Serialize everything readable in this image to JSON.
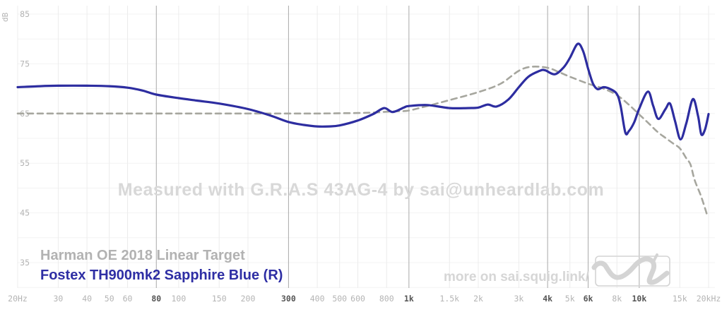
{
  "watermark": {
    "text": "Measured with G.R.A.S 43AG-4 by sai@unheardlab.com"
  },
  "branding": {
    "text": "more on sai.squig.link/",
    "logo_icon": "squiggle-logo"
  },
  "legend": {
    "target": "Harman OE 2018 Linear Target",
    "headphone": "Fostex TH900mk2 Sapphire Blue (R)",
    "target_color": "#b2b2b2",
    "headphone_color": "#2e2ea4"
  },
  "colors": {
    "curve_blue": "#2d2da0",
    "target_gray": "#a6a69e",
    "grid": "#ececec",
    "grid_bold": "#a9a9a9",
    "grid_h": "#f3f3f3",
    "tick": "#b4b4b4",
    "tick_bold": "#555555",
    "watermark": "#d8d8d8",
    "branding": "#d6d6d6",
    "logo": "#d4d4d4"
  },
  "chart_data": {
    "type": "line",
    "x_scale": "log",
    "x_unit": "Hz",
    "y_unit": "dB",
    "x_range": [
      20,
      20000
    ],
    "y_range": [
      30,
      87
    ],
    "grid": "on",
    "legend_position": "bottom-left",
    "y_ticks": [
      85,
      75,
      65,
      55,
      45,
      35
    ],
    "y_grid_step": 5,
    "x_ticks": [
      {
        "label": "20Hz",
        "f": 20,
        "bold": false
      },
      {
        "label": "30",
        "f": 30,
        "bold": false
      },
      {
        "label": "40",
        "f": 40,
        "bold": false
      },
      {
        "label": "50",
        "f": 50,
        "bold": false
      },
      {
        "label": "60",
        "f": 60,
        "bold": false
      },
      {
        "label": "80",
        "f": 80,
        "bold": true
      },
      {
        "label": "100",
        "f": 100,
        "bold": false
      },
      {
        "label": "150",
        "f": 150,
        "bold": false
      },
      {
        "label": "200",
        "f": 200,
        "bold": false
      },
      {
        "label": "300",
        "f": 300,
        "bold": true
      },
      {
        "label": "400",
        "f": 400,
        "bold": false
      },
      {
        "label": "500",
        "f": 500,
        "bold": false
      },
      {
        "label": "600",
        "f": 600,
        "bold": false
      },
      {
        "label": "800",
        "f": 800,
        "bold": false
      },
      {
        "label": "1k",
        "f": 1000,
        "bold": true
      },
      {
        "label": "1.5k",
        "f": 1500,
        "bold": false
      },
      {
        "label": "2k",
        "f": 2000,
        "bold": false
      },
      {
        "label": "3k",
        "f": 3000,
        "bold": false
      },
      {
        "label": "4k",
        "f": 4000,
        "bold": true
      },
      {
        "label": "5k",
        "f": 5000,
        "bold": false
      },
      {
        "label": "6k",
        "f": 6000,
        "bold": true
      },
      {
        "label": "8k",
        "f": 8000,
        "bold": false
      },
      {
        "label": "10k",
        "f": 10000,
        "bold": true
      },
      {
        "label": "15k",
        "f": 15000,
        "bold": false
      },
      {
        "label": "20kHz",
        "f": 20000,
        "bold": false
      }
    ],
    "series": [
      {
        "name": "Harman OE 2018 Linear Target",
        "color": "#a6a69e",
        "style": "dashed",
        "points": [
          [
            20,
            65
          ],
          [
            100,
            65
          ],
          [
            200,
            65
          ],
          [
            300,
            65
          ],
          [
            400,
            65
          ],
          [
            500,
            65.05
          ],
          [
            600,
            65.1
          ],
          [
            700,
            65.2
          ],
          [
            800,
            65.35
          ],
          [
            900,
            65.45
          ],
          [
            1000,
            65.6
          ],
          [
            1200,
            66.5
          ],
          [
            1500,
            67.7
          ],
          [
            2000,
            69.3
          ],
          [
            2500,
            71.0
          ],
          [
            3000,
            73.6
          ],
          [
            3400,
            74.4
          ],
          [
            4000,
            74.2
          ],
          [
            4500,
            73.3
          ],
          [
            5000,
            72.4
          ],
          [
            6000,
            71.0
          ],
          [
            7000,
            70.0
          ],
          [
            8000,
            68.7
          ],
          [
            9000,
            66.8
          ],
          [
            10000,
            64.8
          ],
          [
            11000,
            63.0
          ],
          [
            12000,
            61.3
          ],
          [
            13000,
            60.1
          ],
          [
            14000,
            59.0
          ],
          [
            15000,
            58.0
          ],
          [
            16000,
            56.0
          ],
          [
            16700,
            54.7
          ],
          [
            17400,
            51.6
          ],
          [
            18500,
            48.5
          ],
          [
            19400,
            45.6
          ],
          [
            19800,
            44.2
          ]
        ]
      },
      {
        "name": "Fostex TH900mk2 Sapphire Blue (R)",
        "color": "#2d2da0",
        "style": "solid",
        "points": [
          [
            20,
            70.3
          ],
          [
            25,
            70.5
          ],
          [
            30,
            70.6
          ],
          [
            40,
            70.6
          ],
          [
            50,
            70.5
          ],
          [
            60,
            70.2
          ],
          [
            70,
            69.6
          ],
          [
            80,
            68.8
          ],
          [
            100,
            68.1
          ],
          [
            120,
            67.6
          ],
          [
            150,
            67.0
          ],
          [
            200,
            65.9
          ],
          [
            250,
            64.6
          ],
          [
            300,
            63.3
          ],
          [
            350,
            62.7
          ],
          [
            400,
            62.4
          ],
          [
            450,
            62.4
          ],
          [
            500,
            62.6
          ],
          [
            600,
            63.6
          ],
          [
            700,
            64.9
          ],
          [
            780,
            66.1
          ],
          [
            850,
            65.3
          ],
          [
            950,
            66.2
          ],
          [
            1000,
            66.5
          ],
          [
            1200,
            66.7
          ],
          [
            1500,
            66.1
          ],
          [
            1800,
            66.1
          ],
          [
            2000,
            66.2
          ],
          [
            2200,
            66.8
          ],
          [
            2400,
            66.4
          ],
          [
            2700,
            67.8
          ],
          [
            3000,
            70.3
          ],
          [
            3300,
            72.4
          ],
          [
            3700,
            73.6
          ],
          [
            3900,
            73.7
          ],
          [
            4300,
            72.9
          ],
          [
            4700,
            74.3
          ],
          [
            5000,
            76.2
          ],
          [
            5400,
            79.0
          ],
          [
            5700,
            77.6
          ],
          [
            6000,
            74.0
          ],
          [
            6300,
            71.0
          ],
          [
            6600,
            69.9
          ],
          [
            7000,
            70.3
          ],
          [
            7500,
            69.9
          ],
          [
            8000,
            68.9
          ],
          [
            8300,
            66.5
          ],
          [
            8700,
            61.2
          ],
          [
            9000,
            61.4
          ],
          [
            9500,
            63.2
          ],
          [
            10000,
            66.0
          ],
          [
            10900,
            69.4
          ],
          [
            11500,
            66.5
          ],
          [
            12100,
            63.9
          ],
          [
            13000,
            65.9
          ],
          [
            13600,
            67.0
          ],
          [
            14300,
            63.5
          ],
          [
            15100,
            59.8
          ],
          [
            16000,
            63.0
          ],
          [
            17100,
            67.9
          ],
          [
            18000,
            64.5
          ],
          [
            18600,
            60.8
          ],
          [
            19300,
            61.8
          ],
          [
            20000,
            64.9
          ]
        ]
      }
    ]
  }
}
